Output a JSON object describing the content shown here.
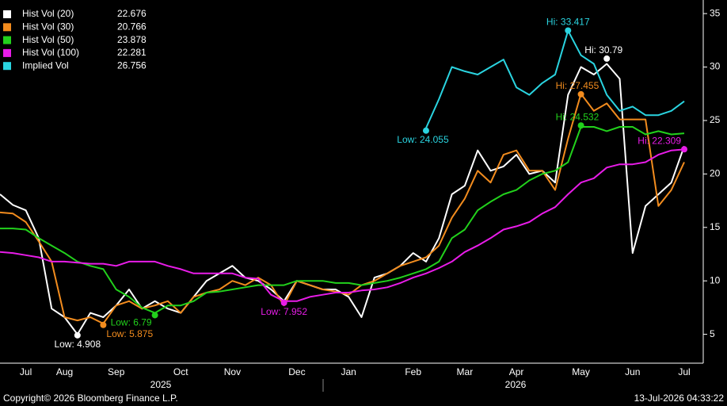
{
  "chart_data": {
    "type": "line",
    "categories": [
      null,
      null,
      "Jul",
      null,
      null,
      "Aug",
      null,
      null,
      null,
      "Sep",
      null,
      null,
      null,
      null,
      "Oct",
      null,
      null,
      null,
      "Nov",
      null,
      null,
      null,
      null,
      "Dec",
      null,
      null,
      null,
      "Jan",
      null,
      null,
      null,
      null,
      "Feb",
      null,
      null,
      null,
      "Mar",
      null,
      null,
      null,
      "Apr",
      null,
      null,
      null,
      null,
      "May",
      null,
      null,
      null,
      "Jun",
      null,
      null,
      null,
      "Jul"
    ],
    "x_year_labels": [
      "2025",
      "2026"
    ],
    "series": [
      {
        "name": "Hist Vol (20)",
        "legend_value": "22.676",
        "color": "#ffffff",
        "values": [
          18.1,
          17.1,
          16.6,
          14.0,
          7.4,
          6.6,
          5.0,
          7.0,
          6.6,
          7.7,
          9.2,
          7.4,
          8.1,
          7.4,
          7.0,
          8.5,
          10.0,
          10.7,
          11.4,
          10.3,
          10.0,
          9.2,
          8.1,
          10.0,
          9.6,
          9.2,
          9.2,
          8.5,
          6.6,
          10.3,
          10.7,
          11.4,
          12.6,
          11.8,
          14.0,
          18.1,
          18.9,
          22.2,
          20.3,
          20.7,
          21.8,
          20.0,
          20.3,
          19.2,
          27.4,
          30.0,
          29.3,
          30.3,
          28.9,
          12.6,
          17.0,
          18.1,
          19.2,
          22.6
        ],
        "high": {
          "value": 30.79,
          "label": "Hi: 30.79"
        },
        "low": {
          "value": 4.908,
          "label": "Low: 4.908"
        }
      },
      {
        "name": "Hist Vol (30)",
        "legend_value": "20.766",
        "color": "#f28c1e",
        "values": [
          16.4,
          16.3,
          15.5,
          13.7,
          11.8,
          6.6,
          6.3,
          6.6,
          6.0,
          7.7,
          8.1,
          7.4,
          7.7,
          8.1,
          7.0,
          8.5,
          8.9,
          9.2,
          10.0,
          9.6,
          10.3,
          9.6,
          7.7,
          10.0,
          9.6,
          9.2,
          9.0,
          8.7,
          9.6,
          10.0,
          10.7,
          11.4,
          11.8,
          12.2,
          13.3,
          15.9,
          17.7,
          20.3,
          19.2,
          21.8,
          22.2,
          20.3,
          20.3,
          18.5,
          23.3,
          27.5,
          25.9,
          26.6,
          25.1,
          25.1,
          25.1,
          17.0,
          18.5,
          21.1
        ],
        "high": {
          "value": 27.455,
          "label": "Hi: 27.455"
        },
        "low": {
          "value": 5.875,
          "label": "Low: 5.875"
        }
      },
      {
        "name": "Hist Vol (50)",
        "legend_value": "23.878",
        "color": "#22d11c",
        "values": [
          14.9,
          14.9,
          14.8,
          14.0,
          13.3,
          12.6,
          11.8,
          11.4,
          11.1,
          9.2,
          8.5,
          7.5,
          7.0,
          7.7,
          7.7,
          8.1,
          8.9,
          9.0,
          9.2,
          9.4,
          9.6,
          9.6,
          9.6,
          10.0,
          10.0,
          10.0,
          9.8,
          9.8,
          9.6,
          9.8,
          10.0,
          10.3,
          10.7,
          11.1,
          11.8,
          14.0,
          14.8,
          16.6,
          17.4,
          18.1,
          18.5,
          19.4,
          20.0,
          20.3,
          21.1,
          24.4,
          24.4,
          24.0,
          24.4,
          24.4,
          23.7,
          24.0,
          23.7,
          23.8
        ],
        "high": {
          "value": 24.532,
          "label": "Hi: 24.532"
        },
        "low": {
          "value": 6.79,
          "label": "Low: 6.79"
        }
      },
      {
        "name": "Hist Vol (100)",
        "legend_value": "22.281",
        "color": "#e81ce8",
        "values": [
          12.7,
          12.6,
          12.4,
          12.2,
          11.8,
          11.8,
          11.7,
          11.6,
          11.6,
          11.4,
          11.8,
          11.8,
          11.8,
          11.4,
          11.1,
          10.7,
          10.7,
          10.7,
          10.7,
          10.3,
          10.2,
          8.7,
          8.1,
          8.1,
          8.5,
          8.7,
          8.9,
          8.9,
          9.1,
          9.2,
          9.4,
          9.8,
          10.3,
          10.7,
          11.2,
          11.8,
          12.7,
          13.3,
          14.0,
          14.8,
          15.1,
          15.5,
          16.3,
          16.9,
          18.1,
          19.2,
          19.6,
          20.6,
          20.9,
          20.9,
          21.1,
          21.8,
          22.2,
          22.3
        ],
        "high": {
          "value": 22.309,
          "label": "Hi: 22.309"
        },
        "low": {
          "value": 7.952,
          "label": "Low: 7.952"
        }
      },
      {
        "name": "Implied Vol",
        "legend_value": "26.756",
        "color": "#2ad4e0",
        "values": [
          null,
          null,
          null,
          null,
          null,
          null,
          null,
          null,
          null,
          null,
          null,
          null,
          null,
          null,
          null,
          null,
          null,
          null,
          null,
          null,
          null,
          null,
          null,
          null,
          null,
          null,
          null,
          null,
          null,
          null,
          null,
          null,
          null,
          24.3,
          27.0,
          30.0,
          29.6,
          29.3,
          30.0,
          30.7,
          28.1,
          27.4,
          28.5,
          29.3,
          33.4,
          31.1,
          30.3,
          27.4,
          25.9,
          26.3,
          25.5,
          25.5,
          25.9,
          26.8
        ],
        "high": {
          "value": 33.417,
          "label": "Hi: 33.417"
        },
        "low": {
          "value": 24.055,
          "label": "Low: 24.055"
        }
      }
    ],
    "ylim": [
      2.3,
      35.9
    ],
    "yticks": [
      5,
      10,
      15,
      20,
      25,
      30,
      35
    ],
    "grid": false,
    "footer_left": "Copyright© 2026 Bloomberg Finance L.P.",
    "footer_right": "13-Jul-2026 04:33:22"
  }
}
